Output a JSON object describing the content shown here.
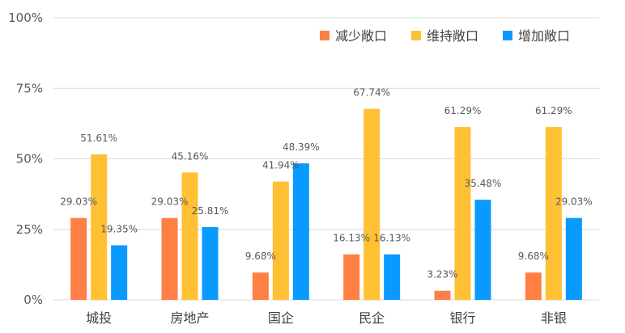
{
  "chart_data": {
    "type": "bar",
    "categories": [
      "城投",
      "房地产",
      "国企",
      "民企",
      "银行",
      "非银"
    ],
    "series": [
      {
        "name": "减少敞口",
        "color": "#FF7F45",
        "values": [
          29.03,
          29.03,
          9.68,
          16.13,
          3.23,
          9.68
        ],
        "labels": [
          "29.03%",
          "29.03%",
          "9.68%",
          "16.13%",
          "3.23%",
          "9.68%"
        ]
      },
      {
        "name": "维持敞口",
        "color": "#FFC133",
        "values": [
          51.61,
          45.16,
          41.94,
          67.74,
          61.29,
          61.29
        ],
        "labels": [
          "51.61%",
          "45.16%",
          "41.94%",
          "67.74%",
          "61.29%",
          "61.29%"
        ]
      },
      {
        "name": "增加敞口",
        "color": "#0A99FF",
        "values": [
          19.35,
          25.81,
          48.39,
          16.13,
          35.48,
          29.03
        ],
        "labels": [
          "19.35%",
          "25.81%",
          "48.39%",
          "16.13%",
          "35.48%",
          "29.03%"
        ]
      }
    ],
    "yticks": [
      "0%",
      "25%",
      "50%",
      "75%",
      "100%"
    ],
    "ytick_values": [
      0,
      25,
      50,
      75,
      100
    ],
    "ylim": [
      0,
      100
    ],
    "grid": true,
    "legend_position": "top-right",
    "title": "",
    "xlabel": "",
    "ylabel": "",
    "gridline_color": "#D9D9D9"
  }
}
